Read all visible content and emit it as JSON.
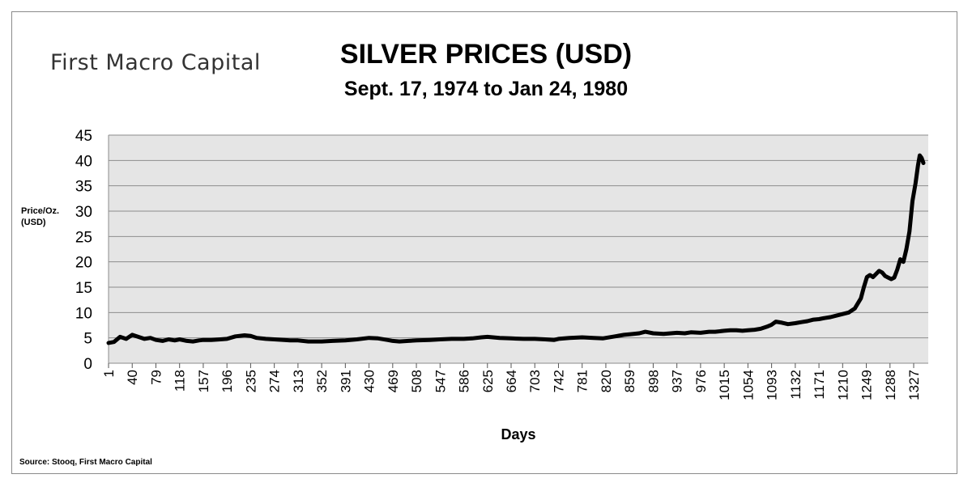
{
  "brand": "First Macro Capital",
  "source": "Source: Stooq, First Macro Capital",
  "chart_data": {
    "type": "line",
    "title": "SILVER PRICES (USD)",
    "subtitle": "Sept. 17, 1974 to Jan 24, 1980",
    "xlabel": "Days",
    "ylabel": "Price/Oz.\n(USD)",
    "xlim": [
      1,
      1351
    ],
    "ylim": [
      0,
      45
    ],
    "y_ticks": [
      0,
      5,
      10,
      15,
      20,
      25,
      30,
      35,
      40,
      45
    ],
    "x_ticks": [
      1,
      40,
      79,
      118,
      157,
      196,
      235,
      274,
      313,
      352,
      391,
      430,
      469,
      508,
      547,
      586,
      625,
      664,
      703,
      742,
      781,
      820,
      859,
      898,
      937,
      976,
      1015,
      1054,
      1093,
      1132,
      1171,
      1210,
      1249,
      1288,
      1327
    ],
    "grid": "horizontal",
    "legend": "none",
    "series": [
      {
        "color": "#000000",
        "points": [
          [
            1,
            4.0
          ],
          [
            10,
            4.2
          ],
          [
            20,
            5.2
          ],
          [
            30,
            4.8
          ],
          [
            40,
            5.6
          ],
          [
            50,
            5.2
          ],
          [
            60,
            4.8
          ],
          [
            70,
            5.0
          ],
          [
            79,
            4.6
          ],
          [
            90,
            4.4
          ],
          [
            100,
            4.7
          ],
          [
            110,
            4.5
          ],
          [
            118,
            4.7
          ],
          [
            130,
            4.4
          ],
          [
            140,
            4.3
          ],
          [
            150,
            4.5
          ],
          [
            157,
            4.6
          ],
          [
            170,
            4.6
          ],
          [
            185,
            4.7
          ],
          [
            196,
            4.8
          ],
          [
            210,
            5.3
          ],
          [
            225,
            5.5
          ],
          [
            235,
            5.4
          ],
          [
            245,
            5.0
          ],
          [
            260,
            4.8
          ],
          [
            274,
            4.7
          ],
          [
            290,
            4.6
          ],
          [
            300,
            4.5
          ],
          [
            313,
            4.5
          ],
          [
            330,
            4.3
          ],
          [
            352,
            4.3
          ],
          [
            370,
            4.4
          ],
          [
            391,
            4.5
          ],
          [
            410,
            4.7
          ],
          [
            430,
            5.0
          ],
          [
            445,
            4.9
          ],
          [
            460,
            4.6
          ],
          [
            469,
            4.4
          ],
          [
            480,
            4.3
          ],
          [
            495,
            4.4
          ],
          [
            508,
            4.5
          ],
          [
            530,
            4.6
          ],
          [
            547,
            4.7
          ],
          [
            566,
            4.8
          ],
          [
            586,
            4.8
          ],
          [
            600,
            4.9
          ],
          [
            615,
            5.1
          ],
          [
            625,
            5.2
          ],
          [
            645,
            5.0
          ],
          [
            664,
            4.9
          ],
          [
            685,
            4.8
          ],
          [
            703,
            4.8
          ],
          [
            720,
            4.7
          ],
          [
            735,
            4.6
          ],
          [
            742,
            4.8
          ],
          [
            760,
            5.0
          ],
          [
            781,
            5.1
          ],
          [
            800,
            5.0
          ],
          [
            815,
            4.9
          ],
          [
            820,
            5.0
          ],
          [
            835,
            5.3
          ],
          [
            850,
            5.6
          ],
          [
            859,
            5.7
          ],
          [
            875,
            5.9
          ],
          [
            885,
            6.2
          ],
          [
            898,
            5.9
          ],
          [
            915,
            5.8
          ],
          [
            937,
            6.0
          ],
          [
            950,
            5.9
          ],
          [
            960,
            6.1
          ],
          [
            976,
            6.0
          ],
          [
            990,
            6.2
          ],
          [
            1000,
            6.2
          ],
          [
            1015,
            6.4
          ],
          [
            1025,
            6.5
          ],
          [
            1035,
            6.5
          ],
          [
            1045,
            6.4
          ],
          [
            1054,
            6.5
          ],
          [
            1065,
            6.6
          ],
          [
            1075,
            6.8
          ],
          [
            1085,
            7.2
          ],
          [
            1093,
            7.6
          ],
          [
            1100,
            8.2
          ],
          [
            1110,
            8.0
          ],
          [
            1120,
            7.7
          ],
          [
            1132,
            7.9
          ],
          [
            1142,
            8.1
          ],
          [
            1152,
            8.3
          ],
          [
            1162,
            8.6
          ],
          [
            1171,
            8.7
          ],
          [
            1180,
            8.9
          ],
          [
            1190,
            9.1
          ],
          [
            1200,
            9.4
          ],
          [
            1210,
            9.7
          ],
          [
            1220,
            10.0
          ],
          [
            1230,
            10.8
          ],
          [
            1240,
            12.8
          ],
          [
            1245,
            15.0
          ],
          [
            1250,
            17.0
          ],
          [
            1255,
            17.4
          ],
          [
            1260,
            17.0
          ],
          [
            1265,
            17.6
          ],
          [
            1270,
            18.2
          ],
          [
            1275,
            17.9
          ],
          [
            1280,
            17.2
          ],
          [
            1285,
            16.9
          ],
          [
            1290,
            16.6
          ],
          [
            1295,
            16.9
          ],
          [
            1300,
            18.5
          ],
          [
            1305,
            20.5
          ],
          [
            1310,
            20.0
          ],
          [
            1315,
            22.5
          ],
          [
            1320,
            26.0
          ],
          [
            1325,
            32.0
          ],
          [
            1330,
            35.5
          ],
          [
            1334,
            39.0
          ],
          [
            1337,
            41.0
          ],
          [
            1340,
            40.5
          ],
          [
            1343,
            39.5
          ]
        ]
      }
    ]
  }
}
